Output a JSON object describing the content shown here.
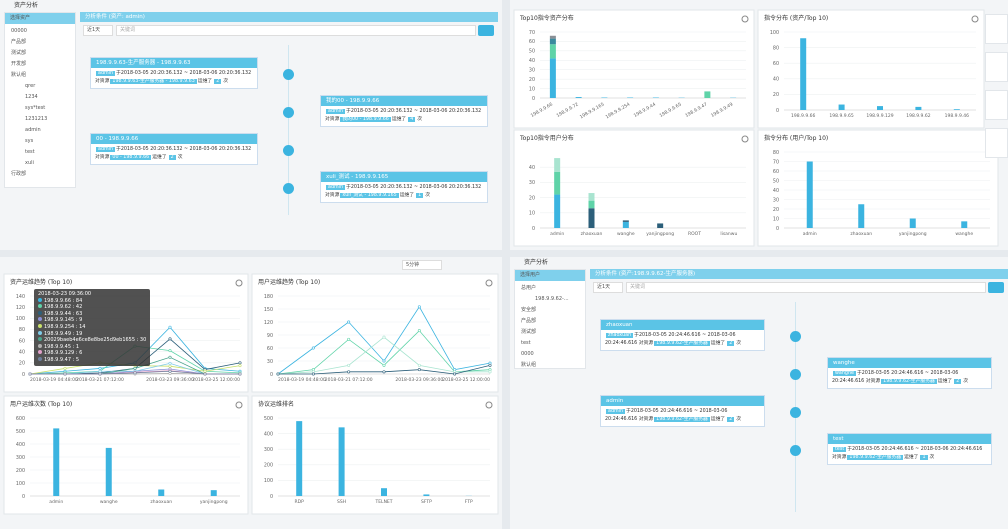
{
  "asset_panel": {
    "header": "资产分析",
    "tree_title": "选择资产",
    "tree": [
      {
        "label": "00000"
      },
      {
        "label": "产品部"
      },
      {
        "label": "测试部"
      },
      {
        "label": "开发部"
      },
      {
        "label": "默认组",
        "children": [
          "qrer",
          "1234",
          "sys*test",
          "1231213",
          "admin",
          "sys",
          "test",
          "xuli"
        ]
      },
      {
        "label": "行政部"
      }
    ],
    "condition": "分析条件 (资产: admin)",
    "range": "近1天",
    "keyword": "关键词",
    "cards": [
      {
        "title": "198.9.9.63-生产服务器 - 198.9.9.63",
        "user": "admin",
        "text": "于2018-03-05 20:20:36.132 ~ 2018-03-06 20:20:36.132 对资源",
        "resource": "198.9.9.63-生产服务器 - 198.9.9.63",
        "verb": "运维了",
        "count": 2,
        "unit": "次"
      },
      {
        "title": "我的00 - 198.9.9.66",
        "user": "admin",
        "text": "于2018-03-05 20:20:36.132 ~ 2018-03-06 20:20:36.132 对资源",
        "resource": "我的00 - 198.9.9.66",
        "verb": "运维了",
        "count": 4,
        "unit": "次"
      },
      {
        "title": "00 - 198.9.9.66",
        "user": "admin",
        "text": "于2018-03-05 20:20:36.132 ~ 2018-03-06 20:20:36.132 对资源",
        "resource": "00 - 198.9.9.66",
        "verb": "运维了",
        "count": 2,
        "unit": "次"
      },
      {
        "title": "xuli_测试 - 198.9.9.165",
        "user": "admin",
        "text": "于2018-03-05 20:20:36.132 ~ 2018-03-06 20:20:36.132 对资源",
        "resource": "xuli_测试 - 198.9.9.165",
        "verb": "运维了",
        "count": 1,
        "unit": "次"
      }
    ]
  },
  "user_panel": {
    "header": "资产分析",
    "tree_title": "选择用户",
    "tree": [
      {
        "label": "总用户",
        "children": [
          "198.9.9.62-..."
        ]
      },
      {
        "label": "安全部"
      },
      {
        "label": "产品部"
      },
      {
        "label": "测试部"
      },
      {
        "label": "test"
      },
      {
        "label": "0000"
      },
      {
        "label": "默认组"
      }
    ],
    "condition": "分析条件 (资产:198.9.9.62-生产服务器)",
    "range": "近1天",
    "keyword": "关键词",
    "cards": [
      {
        "title": "zhaoxuan",
        "user": "zhaoxuan",
        "text": "于2018-03-05 20:24:46.616 ~ 2018-03-06 20:24:46.616 对资源",
        "resource": "198.9.9.62-生产服务器",
        "verb": "运维了",
        "count": 2,
        "unit": "次"
      },
      {
        "title": "wanghe",
        "user": "wanghe",
        "text": "于2018-03-05 20:24:46.616 ~ 2018-03-06 20:24:46.616 对资源",
        "resource": "198.9.9.62-生产服务器",
        "verb": "运维了",
        "count": 2,
        "unit": "次"
      },
      {
        "title": "admin",
        "user": "admin",
        "text": "于2018-03-05 20:24:46.616 ~ 2018-03-06 20:24:46.616 对资源",
        "resource": "198.9.9.62-生产服务器",
        "verb": "运维了",
        "count": 2,
        "unit": "次"
      },
      {
        "title": "test",
        "user": "test",
        "text": "于2018-03-05 20:24:46.616 ~ 2018-03-06 20:24:46.616 对资源",
        "resource": "198.9.9.62-生产服务器",
        "verb": "运维了",
        "count": 1,
        "unit": "次"
      }
    ]
  },
  "toolbar": {
    "interval": "5分钟"
  },
  "chart_data": [
    {
      "type": "bar",
      "title": "Top10指令资产分布",
      "stacked": true,
      "categories": [
        "198.9.9.66",
        "198.9.9.72",
        "198.9.9.165",
        "198.9.9.254",
        "198.9.9.44",
        "198.9.9.65",
        "198.9.9.47",
        "198.9.9.49"
      ],
      "series": [
        {
          "color": "#3bb4e0",
          "values": [
            42,
            1,
            0.5,
            0.5,
            0.5,
            0.3,
            0,
            0.3
          ]
        },
        {
          "color": "#5fd3a8",
          "values": [
            15,
            0,
            0,
            0,
            0,
            0,
            7,
            0
          ]
        },
        {
          "color": "#3a8a9e",
          "values": [
            6,
            0,
            0,
            0,
            0,
            0,
            0,
            0
          ]
        },
        {
          "color": "#8a8f96",
          "values": [
            3,
            0,
            0,
            0,
            0,
            0,
            0,
            0
          ]
        }
      ],
      "ylim": [
        0,
        70
      ],
      "yticks": [
        0,
        10,
        20,
        30,
        40,
        50,
        60,
        70
      ]
    },
    {
      "type": "bar",
      "title": "指令分布 (资产/Top 10)",
      "categories": [
        "198.9.9.66",
        "198.9.9.65",
        "198.9.9.129",
        "198.9.9.62",
        "198.9.9.46"
      ],
      "values": [
        92,
        7,
        5,
        4,
        1
      ],
      "color": "#3bb4e0",
      "ylim": [
        0,
        100
      ],
      "yticks": [
        0,
        20,
        40,
        60,
        80,
        100
      ]
    },
    {
      "type": "bar",
      "title": "Top10指令用户分布",
      "stacked": true,
      "categories": [
        "admin",
        "zhaoxuan",
        "wanghe",
        "yanjingpong",
        "ROOT",
        "lisanwu"
      ],
      "series": [
        {
          "color": "#3bb4e0",
          "values": [
            22,
            0,
            4,
            0,
            0,
            0
          ]
        },
        {
          "color": "#2c5f7a",
          "values": [
            0,
            13,
            1,
            3,
            0,
            0
          ]
        },
        {
          "color": "#5fd3a8",
          "values": [
            15,
            5,
            0,
            0,
            0,
            0
          ]
        },
        {
          "color": "#a9e4d0",
          "values": [
            9,
            5,
            0,
            0,
            0,
            0
          ]
        }
      ],
      "ylim": [
        0,
        50
      ],
      "yticks": [
        0,
        10,
        20,
        30,
        40
      ]
    },
    {
      "type": "bar",
      "title": "指令分布 (用户/Top 10)",
      "categories": [
        "admin",
        "zhaoxuan",
        "yanjingpong",
        "wanghe"
      ],
      "values": [
        70,
        25,
        10,
        7
      ],
      "color": "#3bb4e0",
      "ylim": [
        0,
        80
      ],
      "yticks": [
        0,
        10,
        20,
        30,
        40,
        50,
        60,
        70,
        80
      ]
    },
    {
      "type": "line",
      "title": "资产运维趋势 (Top 10)",
      "categories": [
        "2018-03-19 04:48:00",
        null,
        "2018-03-21 07:12:00",
        null,
        "2018-03-23 09:36:00",
        null,
        "2018-03-25 12:00:00"
      ],
      "series": [
        {
          "name": "198.9.9.66",
          "color": "#3bb4e0",
          "values": [
            0,
            5,
            10,
            20,
            84,
            10,
            5
          ]
        },
        {
          "name": "198.9.9.62",
          "color": "#5fd3a8",
          "values": [
            0,
            2,
            5,
            50,
            42,
            5,
            2
          ]
        },
        {
          "name": "198.9.9.44",
          "color": "#2c5f7a",
          "values": [
            0,
            0,
            2,
            10,
            63,
            8,
            20
          ]
        },
        {
          "name": "198.9.9.145",
          "color": "#8a8fd6",
          "values": [
            0,
            0,
            0,
            5,
            9,
            0,
            0
          ]
        },
        {
          "name": "198.9.9.254",
          "color": "#c8e06b",
          "values": [
            0,
            10,
            20,
            15,
            14,
            5,
            15
          ]
        },
        {
          "name": "198.9.9.49",
          "color": "#7ecbe8",
          "values": [
            0,
            0,
            5,
            5,
            19,
            0,
            0
          ]
        },
        {
          "name": "20029baeb4e6ce8e8be25d9eb1655",
          "color": "#4aa38c",
          "values": [
            0,
            0,
            0,
            10,
            30,
            0,
            0
          ]
        },
        {
          "name": "198.9.9.45",
          "color": "#b0b0b0",
          "values": [
            0,
            0,
            0,
            0,
            1,
            0,
            0
          ]
        },
        {
          "name": "198.9.9.129",
          "color": "#e0a0c8",
          "values": [
            0,
            0,
            0,
            3,
            6,
            0,
            0
          ]
        },
        {
          "name": "198.9.9.47",
          "color": "#6b7d9a",
          "values": [
            0,
            0,
            0,
            2,
            5,
            0,
            0
          ]
        }
      ],
      "ylim": [
        0,
        140
      ],
      "yticks": [
        0,
        20,
        40,
        60,
        80,
        100,
        120,
        140
      ]
    },
    {
      "type": "line",
      "title": "用户运维趋势 (Top 10)",
      "categories": [
        "2018-03-19 04:48:00",
        null,
        "2018-03-21 07:12:00",
        null,
        "2018-03-23 09:36:00",
        null,
        "2018-03-25 12:00:00"
      ],
      "series": [
        {
          "color": "#3bb4e0",
          "values": [
            0,
            60,
            120,
            30,
            155,
            10,
            25
          ]
        },
        {
          "color": "#5fd3a8",
          "values": [
            0,
            10,
            80,
            20,
            100,
            5,
            10
          ]
        },
        {
          "color": "#a9e4d0",
          "values": [
            0,
            5,
            20,
            85,
            20,
            5,
            5
          ]
        },
        {
          "color": "#2c5f7a",
          "values": [
            0,
            0,
            5,
            5,
            10,
            0,
            20
          ]
        }
      ],
      "ylim": [
        0,
        180
      ],
      "yticks": [
        0,
        30,
        60,
        90,
        120,
        150,
        180
      ]
    },
    {
      "type": "bar",
      "title": "用户运维次数 (Top 10)",
      "categories": [
        "admin",
        "wanghe",
        "zhaoxuan",
        "yanjingpong"
      ],
      "values": [
        520,
        370,
        50,
        45
      ],
      "color": "#3bb4e0",
      "ylim": [
        0,
        600
      ],
      "yticks": [
        0,
        100,
        200,
        300,
        400,
        500,
        600
      ]
    },
    {
      "type": "bar",
      "title": "协议运维排名",
      "categories": [
        "RDP",
        "SSH",
        "TELNET",
        "SFTP",
        "FTP"
      ],
      "values": [
        480,
        440,
        50,
        10,
        1
      ],
      "color": "#3bb4e0",
      "ylim": [
        0,
        500
      ],
      "yticks": [
        0,
        100,
        200,
        300,
        400,
        500
      ]
    }
  ]
}
